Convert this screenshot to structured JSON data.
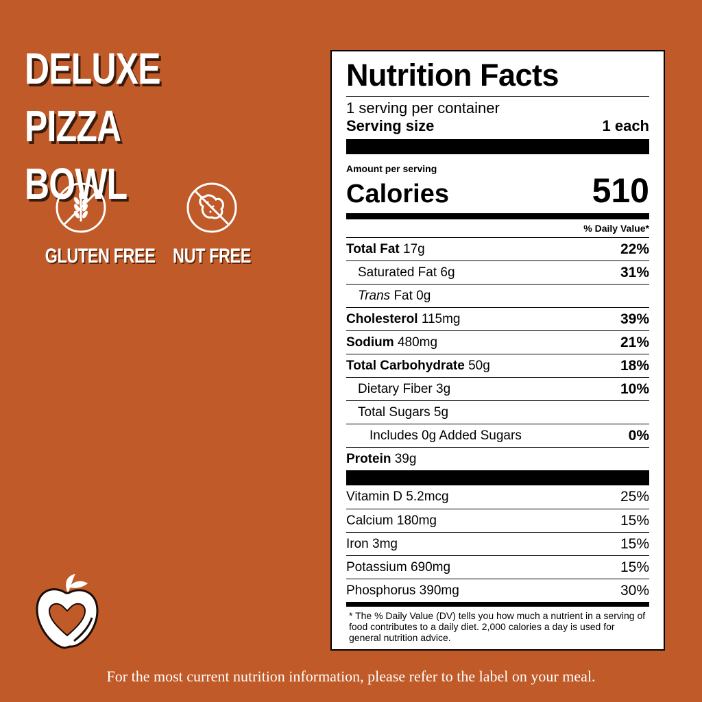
{
  "product": {
    "title_line1": "DELUXE PIZZA",
    "title_line2": "BOWL"
  },
  "badges": [
    {
      "icon": "no-wheat-icon",
      "label": "GLUTEN FREE"
    },
    {
      "icon": "no-peanut-icon",
      "label": "NUT FREE"
    }
  ],
  "label": {
    "title": "Nutrition Facts",
    "servings": "1 serving per container",
    "serving_size_label": "Serving size",
    "serving_size_value": "1 each",
    "amount_per_serving": "Amount per serving",
    "calories_label": "Calories",
    "calories_value": "510",
    "dv_header": "% Daily Value*",
    "nutrients": [
      {
        "name": "Total Fat",
        "amount": "17g",
        "dv": "22%"
      },
      {
        "name": "Saturated Fat",
        "amount": "6g",
        "dv": "31%"
      },
      {
        "name": "Trans",
        "amount": "Fat 0g",
        "dv": ""
      },
      {
        "name": "Cholesterol",
        "amount": "115mg",
        "dv": "39%"
      },
      {
        "name": "Sodium",
        "amount": "480mg",
        "dv": "21%"
      },
      {
        "name": "Total Carbohydrate",
        "amount": "50g",
        "dv": "18%"
      },
      {
        "name": "Dietary Fiber",
        "amount": "3g",
        "dv": "10%"
      },
      {
        "name": "Total Sugars",
        "amount": "5g",
        "dv": ""
      },
      {
        "name": "Includes 0g Added Sugars",
        "amount": "",
        "dv": "0%"
      },
      {
        "name": "Protein",
        "amount": "39g",
        "dv": ""
      }
    ],
    "vitamins": [
      {
        "name": "Vitamin D 5.2mcg",
        "dv": "25%"
      },
      {
        "name": "Calcium 180mg",
        "dv": "15%"
      },
      {
        "name": "Iron 3mg",
        "dv": "15%"
      },
      {
        "name": "Potassium 690mg",
        "dv": "15%"
      },
      {
        "name": "Phosphorus 390mg",
        "dv": "30%"
      }
    ],
    "footnote": "* The % Daily Value (DV) tells you how much a nutrient in a serving of food contributes to a daily diet. 2,000 calories a day is used for general nutrition advice."
  },
  "logo_icon": "apple-heart-logo",
  "footer": "For the most current nutrition information, please refer to the label on your meal.",
  "colors": {
    "background": "#c05a28",
    "label": "#ffffff",
    "text": "#000000"
  }
}
